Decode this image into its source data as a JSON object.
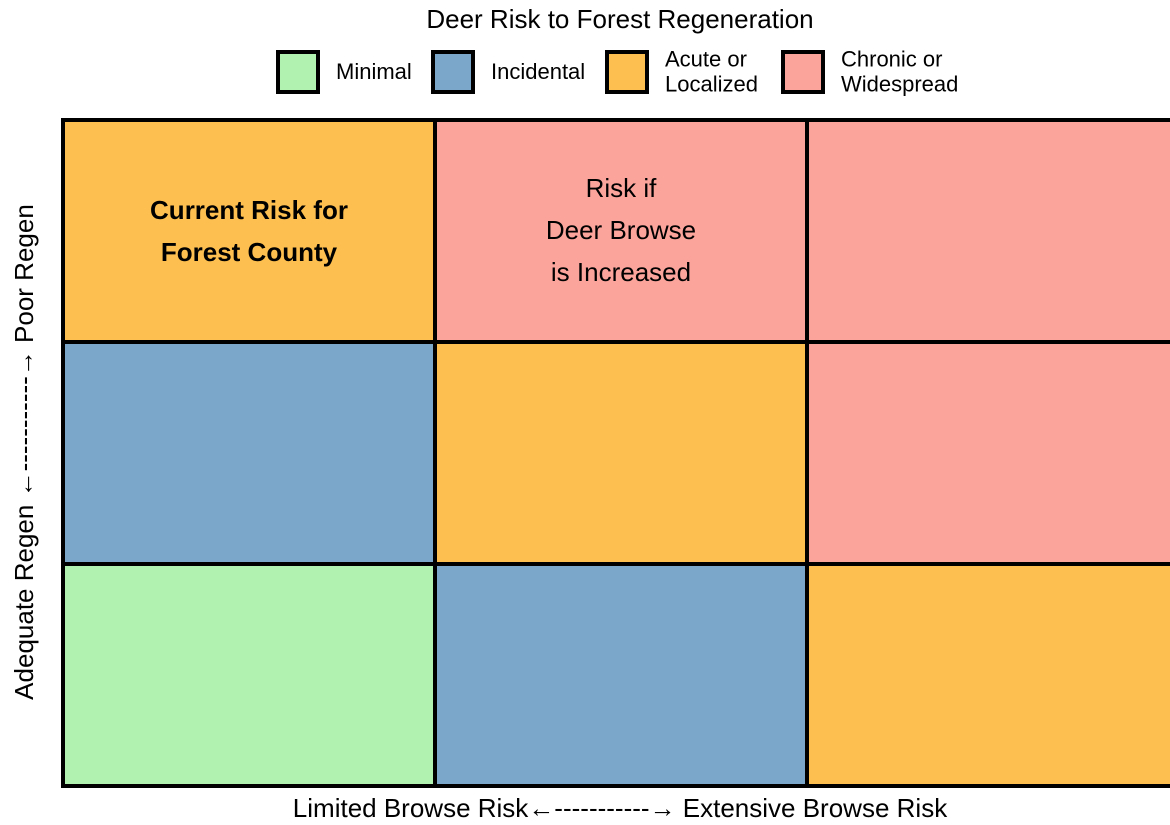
{
  "title": "Deer Risk to Forest Regeneration",
  "legend": [
    {
      "lines": [
        "Minimal"
      ],
      "color": "#b2f2b0"
    },
    {
      "lines": [
        "Incidental"
      ],
      "color": "#7ba7cb"
    },
    {
      "lines": [
        "Acute or",
        "Localized"
      ],
      "color": "#fdbf4f"
    },
    {
      "lines": [
        "Chronic or",
        "Widespread"
      ],
      "color": "#fba49c"
    }
  ],
  "grid": {
    "rows": [
      [
        {
          "color": "#fdbf4f",
          "bold": true,
          "lines": [
            "Current Risk for",
            "Forest County"
          ]
        },
        {
          "color": "#fba49c",
          "bold": false,
          "lines": [
            "Risk if",
            "Deer Browse",
            "is Increased"
          ]
        },
        {
          "color": "#fba49c"
        }
      ],
      [
        {
          "color": "#7ba7cb"
        },
        {
          "color": "#fdbf4f"
        },
        {
          "color": "#fba49c"
        }
      ],
      [
        {
          "color": "#b2f2b0"
        },
        {
          "color": "#7ba7cb"
        },
        {
          "color": "#fdbf4f"
        }
      ]
    ]
  },
  "x_axis_label": "Limited Browse Risk←-----------→ Extensive Browse Risk",
  "y_axis_label": "Adequate Regen ←-----------→ Poor Regen"
}
